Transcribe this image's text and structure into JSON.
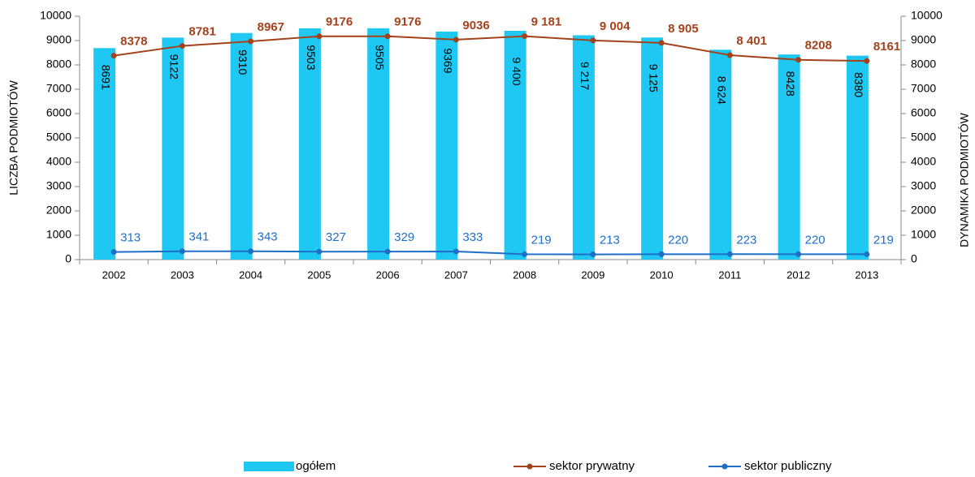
{
  "chart_data": {
    "type": "bar-line",
    "y_label": "LICZBA PODMIOTÓW",
    "y2_label": "DYNAMIKA PODMIOTÓW",
    "categories": [
      "2002",
      "2003",
      "2004",
      "2005",
      "2006",
      "2007",
      "2008",
      "2009",
      "2010",
      "2011",
      "2012",
      "2013"
    ],
    "series": [
      {
        "name": "ogółem",
        "type": "bar",
        "color": "#1ec8f2",
        "values": [
          8691,
          9122,
          9310,
          9503,
          9505,
          9369,
          9400,
          9217,
          9125,
          8624,
          8428,
          8380
        ],
        "value_labels": [
          "8691",
          "9122",
          "9310",
          "9503",
          "9505",
          "9369",
          "9 400",
          "9 217",
          "9 125",
          "8 624",
          "8428",
          "8380"
        ]
      },
      {
        "name": "sektor prywatny",
        "type": "line",
        "axis": "y2",
        "color": "#a3421b",
        "values": [
          8378,
          8781,
          8967,
          9176,
          9176,
          9036,
          9181,
          9004,
          8905,
          8401,
          8208,
          8161
        ],
        "value_labels": [
          "8378",
          "8781",
          "8967",
          "9176",
          "9176",
          "9036",
          "9 181",
          "9 004",
          "8 905",
          "8 401",
          "8208",
          "8161"
        ]
      },
      {
        "name": "sektor publiczny",
        "type": "line",
        "axis": "y2",
        "color": "#1f6fc8",
        "values": [
          313,
          341,
          343,
          327,
          329,
          333,
          219,
          213,
          220,
          223,
          220,
          219
        ]
      }
    ],
    "ylim": [
      0,
      10000
    ],
    "yticks": [
      0,
      1000,
      2000,
      3000,
      4000,
      5000,
      6000,
      7000,
      8000,
      9000,
      10000
    ],
    "y2lim": [
      0,
      10000
    ],
    "y2ticks": [
      0,
      1000,
      2000,
      3000,
      4000,
      5000,
      6000,
      7000,
      8000,
      9000,
      10000
    ]
  }
}
